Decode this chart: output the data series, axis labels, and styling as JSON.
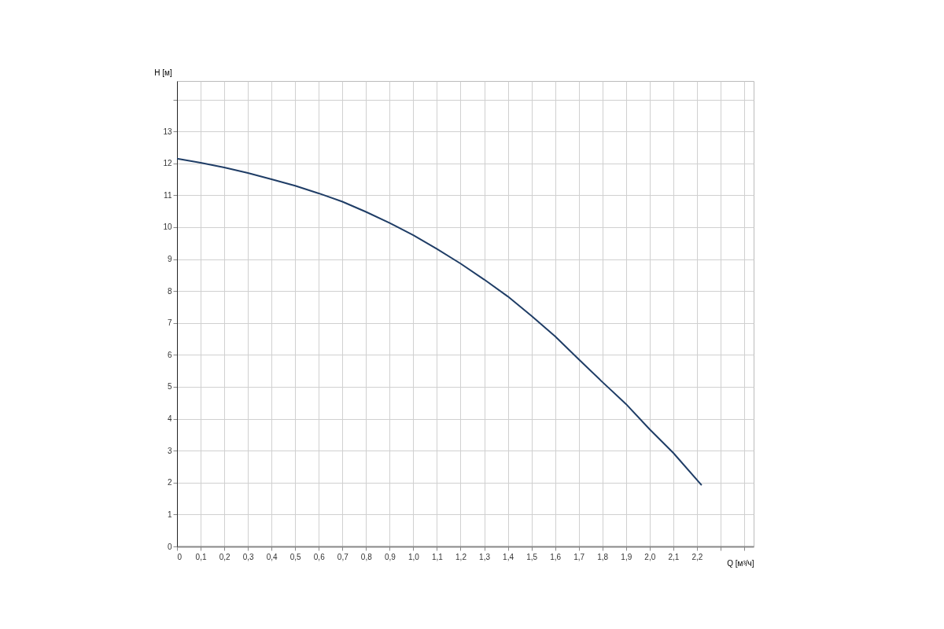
{
  "chart_data": {
    "type": "line",
    "xlabel": "Q [м³/ч]",
    "ylabel": "H [м]",
    "x": [
      0,
      0.1,
      0.2,
      0.3,
      0.4,
      0.5,
      0.6,
      0.7,
      0.8,
      0.9,
      1.0,
      1.1,
      1.2,
      1.3,
      1.4,
      1.5,
      1.6,
      1.7,
      1.8,
      1.9,
      2.0,
      2.1,
      2.22
    ],
    "series": [
      {
        "color": "#1f3d66",
        "values": [
          12.15,
          12.02,
          11.87,
          11.7,
          11.5,
          11.3,
          11.06,
          10.8,
          10.48,
          10.13,
          9.75,
          9.32,
          8.86,
          8.36,
          7.83,
          7.22,
          6.58,
          5.86,
          5.15,
          4.46,
          3.67,
          2.93,
          1.92
        ]
      }
    ],
    "xlim": [
      0,
      2.44
    ],
    "ylim": [
      0,
      14.58
    ],
    "xticks": [
      0,
      {
        "value": 0.1,
        "label": "0,1"
      },
      {
        "value": 0.2,
        "label": "0,2"
      },
      {
        "value": 0.3,
        "label": "0,3"
      },
      {
        "value": 0.4,
        "label": "0,4"
      },
      {
        "value": 0.5,
        "label": "0,5"
      },
      {
        "value": 0.6,
        "label": "0,6"
      },
      {
        "value": 0.7,
        "label": "0,7"
      },
      {
        "value": 0.8,
        "label": "0,8"
      },
      {
        "value": 0.9,
        "label": "0,9"
      },
      {
        "value": 1.0,
        "label": "1,0"
      },
      {
        "value": 1.1,
        "label": "1,1"
      },
      {
        "value": 1.2,
        "label": "1,2"
      },
      {
        "value": 1.3,
        "label": "1,3"
      },
      {
        "value": 1.4,
        "label": "1,4"
      },
      {
        "value": 1.5,
        "label": "1,5"
      },
      {
        "value": 1.6,
        "label": "1,6"
      },
      {
        "value": 1.7,
        "label": "1,7"
      },
      {
        "value": 1.8,
        "label": "1,8"
      },
      {
        "value": 1.9,
        "label": "1,9"
      },
      {
        "value": 2.0,
        "label": "2,0"
      },
      {
        "value": 2.1,
        "label": "2,1"
      },
      {
        "value": 2.2,
        "label": "2,2"
      },
      {
        "value": 2.3,
        "label": null
      },
      {
        "value": 2.4,
        "label": null
      }
    ],
    "yticks": [
      0,
      1,
      2,
      3,
      4,
      5,
      6,
      7,
      8,
      9,
      10,
      11,
      12,
      13,
      {
        "value": 14,
        "label": null
      }
    ],
    "grid": true,
    "line_style": "solid"
  }
}
